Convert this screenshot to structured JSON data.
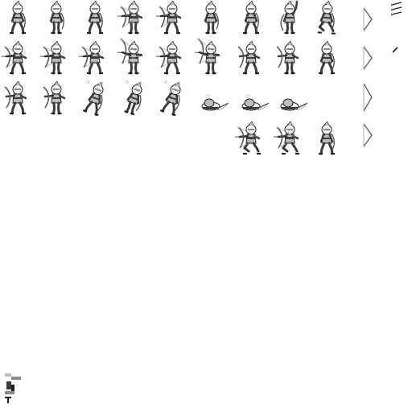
{
  "sprite_sheet": {
    "background": "#ffffff",
    "palette": {
      "outline": "#1e1e1e",
      "dark": "#3c3c3c",
      "mid": "#8a8a8a",
      "light": "#bdbdbd",
      "highlight": "#f2f2f2",
      "bow": "#5a5a5a",
      "string": "#9a9a9a"
    },
    "rows": [
      {
        "id": "row-idle-walk",
        "frames": [
          "idle",
          "walk",
          "walk",
          "walk-draw",
          "walk-draw",
          "walk",
          "walk",
          "raise-arm",
          "crouch"
        ]
      },
      {
        "id": "row-shoot",
        "frames": [
          "aim",
          "draw",
          "draw",
          "aim-up",
          "draw",
          "aim-up",
          "release",
          "release",
          "recover"
        ]
      },
      {
        "id": "row-death",
        "frames": [
          "hit",
          "hit",
          "stagger",
          "fall",
          "fall",
          "collapse",
          "collapse",
          "lying"
        ]
      },
      {
        "id": "row-extra",
        "frames": [
          "kneel-aim",
          "kneel-aim",
          "stand"
        ]
      }
    ],
    "bow_frames": 4,
    "arrow_frames": 4,
    "corner_glyph": "icon"
  }
}
